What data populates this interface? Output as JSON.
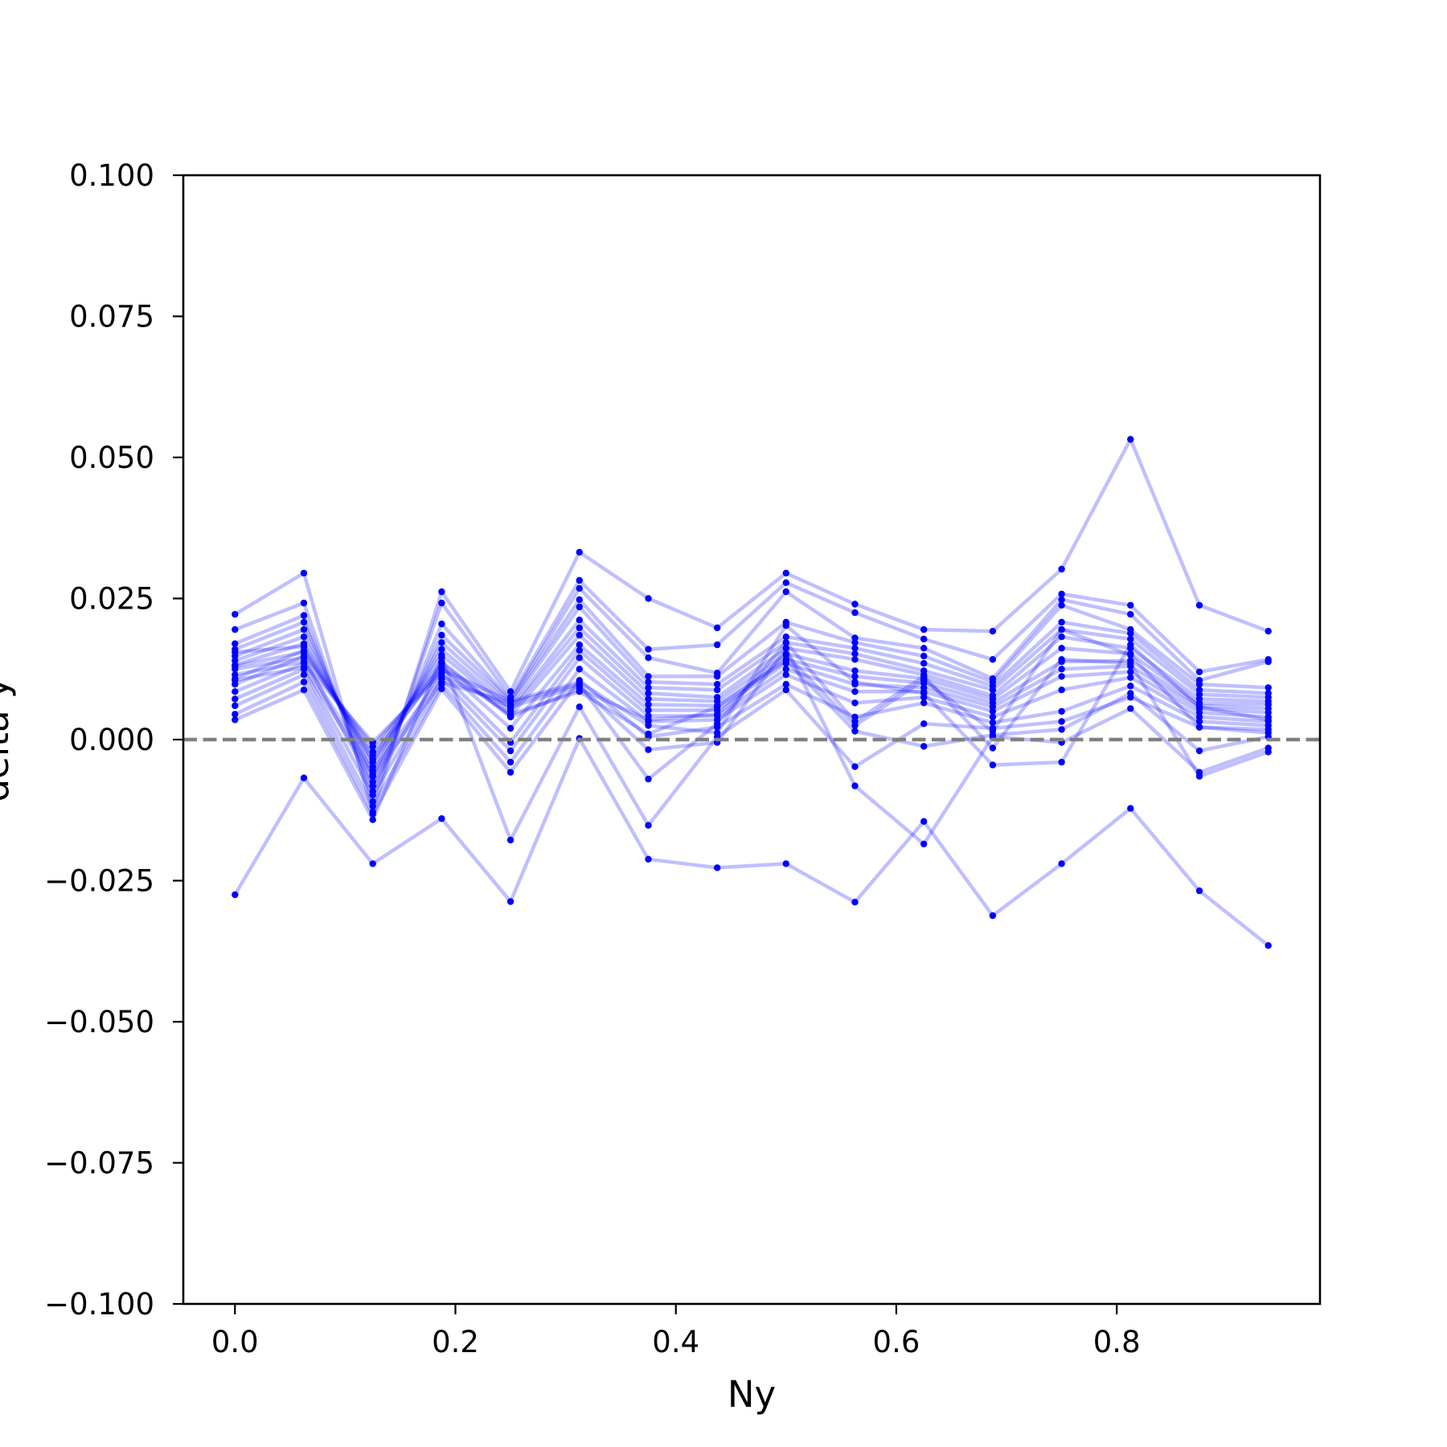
{
  "chart_data": {
    "type": "line",
    "title": "",
    "xlabel": "Ny",
    "ylabel": "delta y",
    "xlim": [
      -0.046875,
      0.984375
    ],
    "ylim": [
      -0.1,
      0.1
    ],
    "x_ticks": [
      0.0,
      0.2,
      0.4,
      0.6,
      0.8
    ],
    "x_tick_labels": [
      "0.0",
      "0.2",
      "0.4",
      "0.6",
      "0.8"
    ],
    "y_ticks": [
      0.1,
      0.075,
      0.05,
      0.025,
      0.0,
      -0.025,
      -0.05,
      -0.075,
      -0.1
    ],
    "y_tick_labels": [
      "0.100",
      "0.075",
      "0.050",
      "0.025",
      "0.000",
      "−0.025",
      "−0.050",
      "−0.075",
      "−0.100"
    ],
    "reference_line": {
      "y": 0.0,
      "style": "dashed",
      "color": "#808080"
    },
    "series_color": "#0000ff",
    "series_alpha": 0.25,
    "grid": false,
    "legend": "none",
    "x": [
      0.0,
      0.0625,
      0.125,
      0.1875,
      0.25,
      0.3125,
      0.375,
      0.4375,
      0.5,
      0.5625,
      0.625,
      0.6875,
      0.75,
      0.8125,
      0.875,
      0.9375
    ],
    "series": [
      {
        "values": [
          -0.0275,
          -0.0068,
          -0.022,
          -0.014,
          -0.0287,
          0.0002,
          -0.0212,
          -0.0227,
          -0.022,
          -0.0288,
          -0.0145,
          -0.0312,
          -0.022,
          -0.0122,
          -0.0268,
          -0.0365
        ]
      },
      {
        "values": [
          0.0222,
          0.0295,
          -0.0128,
          0.0262,
          0.0085,
          0.0332,
          0.025,
          0.0198,
          0.0295,
          0.024,
          0.0195,
          0.0192,
          0.0302,
          0.0532,
          0.0238,
          0.0192
        ]
      },
      {
        "values": [
          0.0195,
          0.0242,
          -0.011,
          0.0242,
          0.0075,
          0.0282,
          0.016,
          0.0168,
          0.0278,
          0.0225,
          0.0178,
          0.0142,
          0.0258,
          0.0238,
          0.012,
          0.0142
        ]
      },
      {
        "values": [
          0.017,
          0.022,
          -0.0092,
          0.0205,
          0.007,
          0.0268,
          0.0145,
          0.0118,
          0.0262,
          0.018,
          0.0162,
          0.0108,
          0.0248,
          0.0222,
          0.0105,
          0.0138
        ]
      },
      {
        "values": [
          0.016,
          0.0208,
          -0.0075,
          0.0185,
          0.0068,
          0.0248,
          0.0112,
          0.0112,
          0.0208,
          0.0172,
          0.0148,
          0.0102,
          0.0238,
          0.0195,
          0.0098,
          0.0092
        ]
      },
      {
        "values": [
          0.0148,
          0.0195,
          -0.0062,
          0.0172,
          0.0062,
          0.0235,
          0.0102,
          0.0098,
          0.0182,
          0.0162,
          0.0135,
          0.0095,
          0.0208,
          0.0188,
          0.0088,
          0.0082
        ]
      },
      {
        "values": [
          0.014,
          0.0182,
          -0.0048,
          0.016,
          0.0055,
          0.0212,
          0.0092,
          0.0088,
          0.0172,
          0.0152,
          0.0122,
          0.0088,
          0.0195,
          0.0178,
          0.008,
          0.0075
        ]
      },
      {
        "values": [
          0.0132,
          0.017,
          -0.0035,
          0.015,
          0.005,
          0.0198,
          0.0082,
          0.0075,
          0.0162,
          0.0142,
          0.0115,
          0.0078,
          0.0182,
          0.0162,
          0.0072,
          0.0068
        ]
      },
      {
        "values": [
          0.0108,
          0.0158,
          -0.0022,
          0.0138,
          0.0042,
          0.0185,
          0.0072,
          0.0068,
          0.0152,
          0.0122,
          0.0108,
          0.0072,
          0.0162,
          0.0152,
          0.0065,
          0.0062
        ]
      },
      {
        "values": [
          0.0098,
          0.0148,
          -0.0012,
          0.0128,
          0.002,
          0.0168,
          0.0062,
          0.006,
          0.0142,
          0.0112,
          0.01,
          0.0065,
          0.0138,
          0.014,
          0.006,
          0.0055
        ]
      },
      {
        "values": [
          0.0085,
          0.0135,
          -0.0005,
          0.0118,
          -0.0005,
          0.0158,
          0.0052,
          0.0052,
          0.0135,
          0.0098,
          0.0092,
          0.0058,
          0.0125,
          0.013,
          0.0055,
          0.0048
        ]
      },
      {
        "values": [
          0.0072,
          0.0125,
          -0.0098,
          0.0108,
          -0.002,
          0.0145,
          0.0042,
          0.0042,
          0.0125,
          0.0085,
          0.0085,
          0.005,
          0.0112,
          0.012,
          0.0048,
          0.004
        ]
      },
      {
        "values": [
          0.006,
          0.0115,
          -0.0118,
          0.0098,
          -0.004,
          0.0125,
          0.0032,
          0.0035,
          0.0115,
          0.0065,
          0.0075,
          0.004,
          0.0088,
          0.011,
          0.004,
          0.0032
        ]
      },
      {
        "values": [
          0.0045,
          0.0102,
          -0.0132,
          0.009,
          -0.0058,
          0.0105,
          0.0005,
          0.0022,
          0.0098,
          0.004,
          0.0065,
          0.003,
          0.005,
          0.0095,
          0.0032,
          0.0025
        ]
      },
      {
        "values": [
          0.0035,
          0.0088,
          -0.0142,
          0.0145,
          -0.0178,
          0.0058,
          -0.0152,
          0.0005,
          0.0088,
          -0.0048,
          0.0028,
          0.002,
          0.0032,
          0.0075,
          0.0022,
          0.0018
        ]
      },
      {
        "values": [
          0.0155,
          0.0165,
          -0.004,
          0.0135,
          0.004,
          0.009,
          0.0035,
          0.0045,
          0.015,
          0.0025,
          0.0105,
          0.0015,
          0.0195,
          0.015,
          0.0022,
          0.0012
        ]
      },
      {
        "values": [
          0.0125,
          0.0145,
          -0.0082,
          0.0125,
          0.0045,
          0.0085,
          0.001,
          0.0058,
          0.014,
          0.0015,
          -0.0012,
          0.0008,
          0.0018,
          0.0082,
          -0.002,
          0.0005
        ]
      },
      {
        "values": [
          0.0115,
          0.0138,
          -0.0055,
          0.0112,
          0.0058,
          0.0095,
          -0.0018,
          -0.0005,
          0.0162,
          -0.0082,
          -0.0185,
          0.0005,
          -0.0005,
          0.0055,
          -0.0058,
          -0.0015
        ]
      },
      {
        "values": [
          0.0105,
          0.0128,
          -0.0065,
          0.0102,
          0.0065,
          0.0098,
          -0.007,
          0.0028,
          0.0172,
          0.0032,
          0.0112,
          -0.0015,
          0.0142,
          0.0135,
          -0.0065,
          -0.0022
        ]
      },
      {
        "values": [
          0.013,
          0.0155,
          -0.0028,
          0.0125,
          0.0068,
          0.0102,
          0.0025,
          0.0012,
          0.0202,
          0.0102,
          0.0082,
          -0.0045,
          -0.004,
          0.0168,
          0.0058,
          0.0035
        ]
      }
    ]
  }
}
